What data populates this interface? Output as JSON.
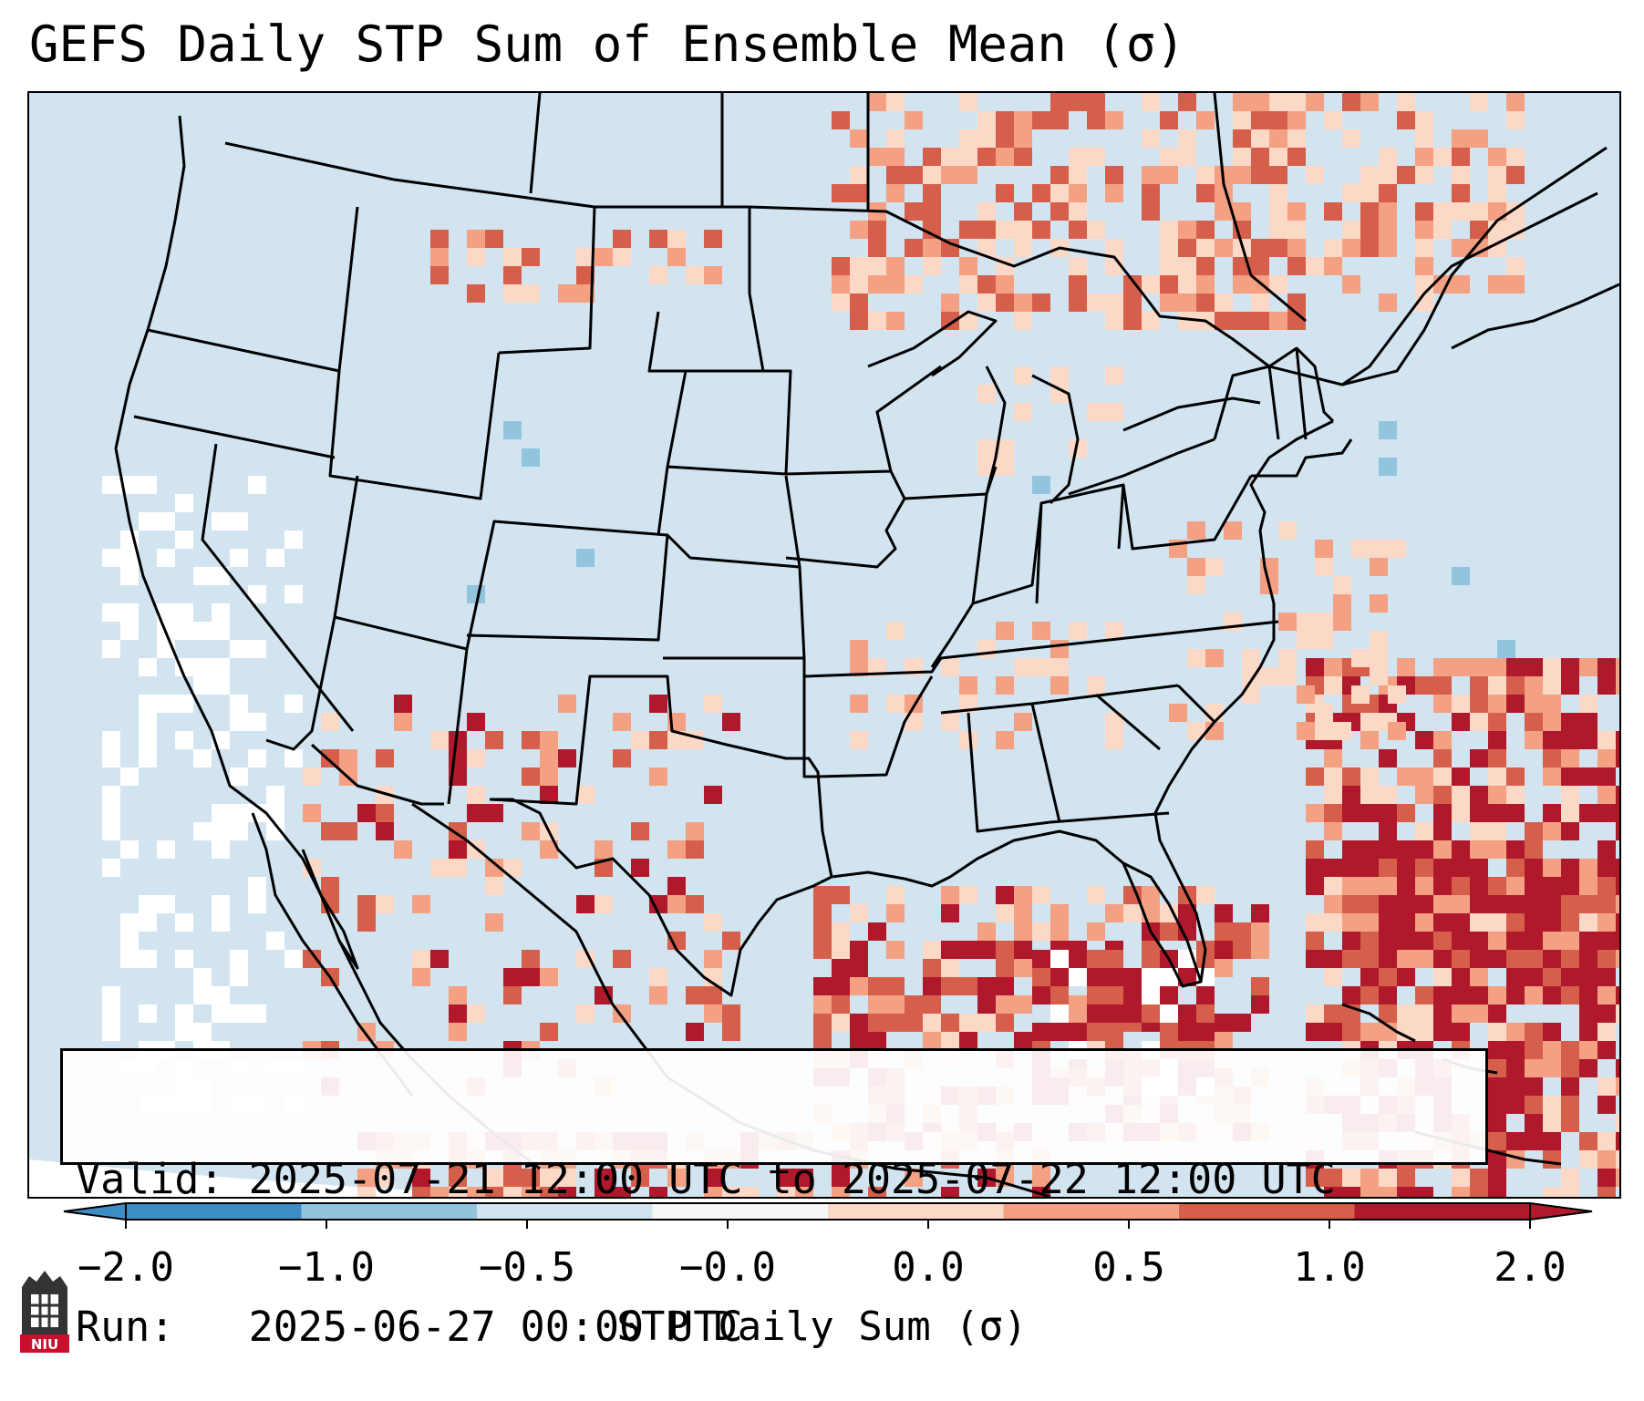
{
  "title": "GEFS Daily STP Sum of Ensemble Mean (σ)",
  "info": {
    "valid_label": "Valid:",
    "valid_value": "2025-07-21 12:00 UTC to 2025-07-22 12:00 UTC",
    "run_label": "Run:",
    "run_value": "2025-06-27 00:00 UTC"
  },
  "colorbar": {
    "label": "STP Daily Sum (σ)",
    "tick_labels": [
      "−2.0",
      "−1.0",
      "−0.5",
      "−0.0",
      "0.0",
      "0.5",
      "1.0",
      "2.0"
    ],
    "bin_colors": [
      "#3d8cc4",
      "#93c4de",
      "#d1e4f0",
      "#f7f7f7",
      "#fcd8c6",
      "#f3a083",
      "#d65f4c",
      "#b0182b"
    ],
    "extend": "both"
  },
  "map": {
    "background_color": "#d1e4f0",
    "region": "Continental United States, southern Canada, northern Mexico, Gulf of Mexico, western Atlantic"
  },
  "logo": {
    "text": "NIU",
    "color": "#c8102e"
  }
}
